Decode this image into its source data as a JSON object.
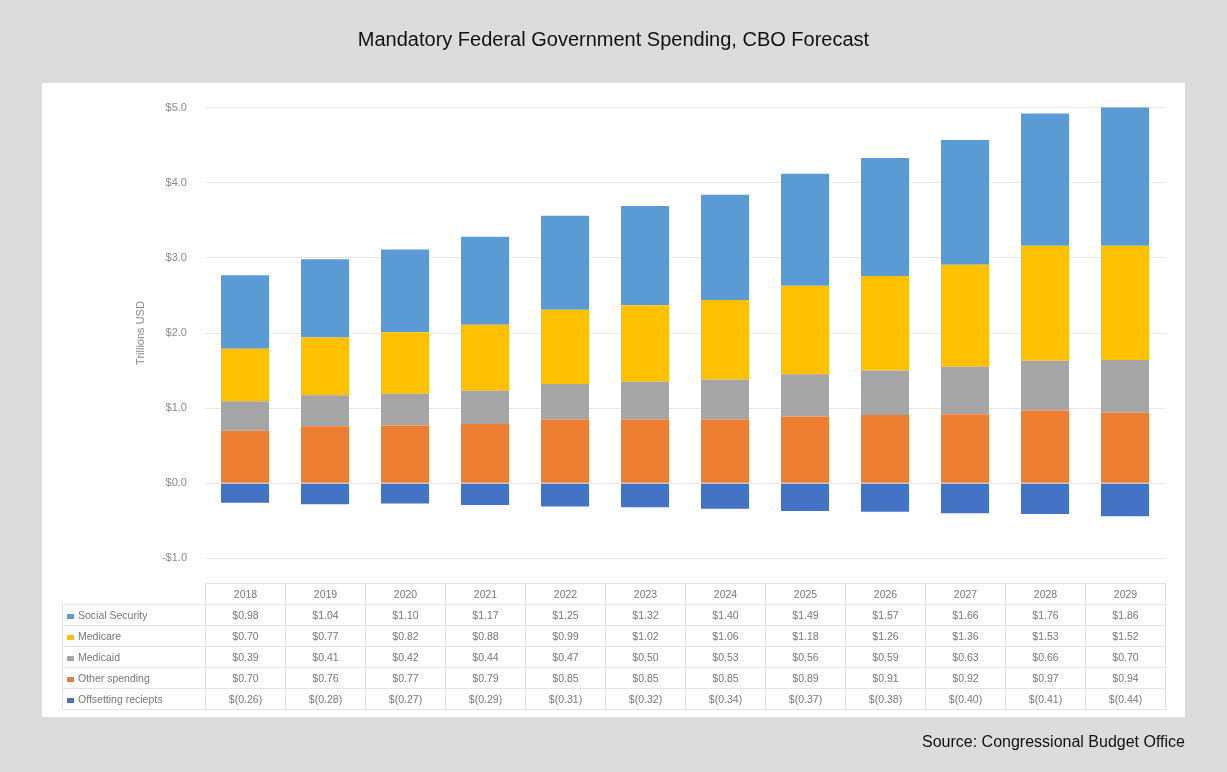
{
  "chart_data": {
    "type": "bar",
    "title": "Mandatory Federal Government Spending, CBO Forecast",
    "ylabel": "Trillions USD",
    "annotations": [
      "Source: Congressional Budget Office"
    ],
    "categories": [
      "2018",
      "2019",
      "2020",
      "2021",
      "2022",
      "2023",
      "2024",
      "2025",
      "2026",
      "2027",
      "2028",
      "2029"
    ],
    "stacked": true,
    "grid": "y",
    "legend": "bottom",
    "ylim": [
      -1,
      5
    ],
    "yticks": [
      {
        "value": -1,
        "label": "-$1.0"
      },
      {
        "value": 0,
        "label": "$0.0"
      },
      {
        "value": 1,
        "label": "$1.0"
      },
      {
        "value": 2,
        "label": "$2.0"
      },
      {
        "value": 3,
        "label": "$3.0"
      },
      {
        "value": 4,
        "label": "$4.0"
      },
      {
        "value": 5,
        "label": "$5.0"
      }
    ],
    "series": [
      {
        "name": "Offsetting reciepts",
        "color": "#4472c4",
        "values": [
          -0.26,
          -0.28,
          -0.27,
          -0.29,
          -0.31,
          -0.32,
          -0.34,
          -0.37,
          -0.38,
          -0.4,
          -0.41,
          -0.44
        ],
        "value_labels": [
          "$(0.26)",
          "$(0.28)",
          "$(0.27)",
          "$(0.29)",
          "$(0.31)",
          "$(0.32)",
          "$(0.34)",
          "$(0.37)",
          "$(0.38)",
          "$(0.40)",
          "$(0.41)",
          "$(0.44)"
        ]
      },
      {
        "name": "Other spending",
        "color": "#ed7d31",
        "values": [
          0.7,
          0.76,
          0.77,
          0.79,
          0.85,
          0.85,
          0.85,
          0.89,
          0.91,
          0.92,
          0.97,
          0.94
        ],
        "value_labels": [
          "$0.70",
          "$0.76",
          "$0.77",
          "$0.79",
          "$0.85",
          "$0.85",
          "$0.85",
          "$0.89",
          "$0.91",
          "$0.92",
          "$0.97",
          "$0.94"
        ]
      },
      {
        "name": "Medicaid",
        "color": "#a5a5a5",
        "values": [
          0.39,
          0.41,
          0.42,
          0.44,
          0.47,
          0.5,
          0.53,
          0.56,
          0.59,
          0.63,
          0.66,
          0.7
        ],
        "value_labels": [
          "$0.39",
          "$0.41",
          "$0.42",
          "$0.44",
          "$0.47",
          "$0.50",
          "$0.53",
          "$0.56",
          "$0.59",
          "$0.63",
          "$0.66",
          "$0.70"
        ]
      },
      {
        "name": "Medicare",
        "color": "#ffc000",
        "values": [
          0.7,
          0.77,
          0.82,
          0.88,
          0.99,
          1.02,
          1.06,
          1.18,
          1.26,
          1.36,
          1.53,
          1.52
        ],
        "value_labels": [
          "$0.70",
          "$0.77",
          "$0.82",
          "$0.88",
          "$0.99",
          "$1.02",
          "$1.06",
          "$1.18",
          "$1.26",
          "$1.36",
          "$1.53",
          "$1.52"
        ]
      },
      {
        "name": "Social Security",
        "color": "#5b9bd5",
        "values": [
          0.98,
          1.04,
          1.1,
          1.17,
          1.25,
          1.32,
          1.4,
          1.49,
          1.57,
          1.66,
          1.76,
          1.86
        ],
        "value_labels": [
          "$0.98",
          "$1.04",
          "$1.10",
          "$1.17",
          "$1.25",
          "$1.32",
          "$1.40",
          "$1.49",
          "$1.57",
          "$1.66",
          "$1.76",
          "$1.86"
        ]
      }
    ]
  }
}
